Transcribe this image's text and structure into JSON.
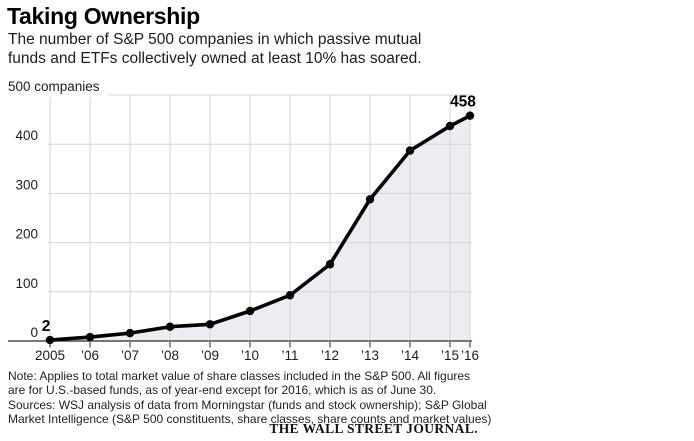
{
  "header": {
    "title": "Taking Ownership",
    "subtitle_lines": [
      "The number of S&P 500 companies in which passive mutual",
      "funds and ETFs collectively owned at least 10% has soared."
    ]
  },
  "chart_data": {
    "type": "area",
    "title": "Taking Ownership",
    "unit_label": "500 companies",
    "x_tick_labels": [
      "2005",
      "’06",
      "’07",
      "’08",
      "’09",
      "’10",
      "’11",
      "’12",
      "’13",
      "’14",
      "’15",
      "’16"
    ],
    "time_positions": [
      0,
      1,
      2,
      3,
      4,
      5,
      6,
      7,
      8,
      9,
      10,
      10.5
    ],
    "values": [
      2,
      8,
      16,
      29,
      34,
      61,
      93,
      156,
      288,
      387,
      437,
      458
    ],
    "ylim": [
      0,
      500
    ],
    "y_tick_values": [
      0,
      100,
      200,
      300,
      400
    ],
    "first_point_label": "2",
    "last_point_label": "458",
    "grid": true,
    "legend": "none",
    "colors": {
      "line": "#000000",
      "fill": "#ececf2",
      "grid": "#d4d4da",
      "axis": "#4d4d4d",
      "text": "#1d1d1d"
    }
  },
  "footer": {
    "note_lines": [
      "Note: Applies to total market value of share classes included in the S&P 500. All figures",
      "are for U.S.-based funds, as of year-end except for 2016, which is as of June 30.",
      "Sources: WSJ analysis of data from Morningstar (funds and stock ownership); S&P Global",
      "Market Intelligence (S&P 500 constituents, share classes, share counts and market values)"
    ],
    "credit": "THE WALL STREET JOURNAL."
  }
}
